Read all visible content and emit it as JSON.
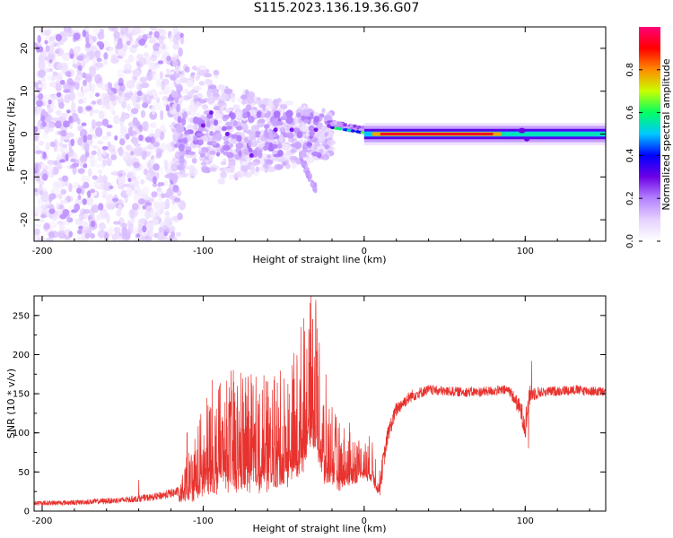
{
  "title": "S115.2023.136.19.36.G07",
  "chart_data": [
    {
      "type": "heatmap",
      "xlabel": "Height of straight line (km)",
      "ylabel": "Frequency (Hz)",
      "xlim": [
        -205,
        150
      ],
      "ylim": [
        -25,
        25
      ],
      "xticks": [
        -200,
        -100,
        0,
        100
      ],
      "yticks": [
        -20,
        -10,
        0,
        10,
        20
      ],
      "colorbar": {
        "label": "Normalized spectral amplitude",
        "range": [
          0,
          1
        ],
        "ticks": [
          0.0,
          0.2,
          0.4,
          0.6,
          0.8
        ],
        "colormap": [
          "#ffffff",
          "#e6d2ff",
          "#b482ff",
          "#6e00e6",
          "#0000ff",
          "#00c8ff",
          "#00ff64",
          "#c8ff00",
          "#ff8c00",
          "#ff0000",
          "#ff0078"
        ]
      },
      "features": [
        {
          "name": "diffuse noise",
          "x_range": [
            -205,
            -115
          ],
          "freq_range": [
            -25,
            25
          ],
          "amplitude": 0.05
        },
        {
          "name": "scattered features",
          "x_range": [
            -115,
            -20
          ],
          "freq_range": [
            -15,
            12
          ],
          "amplitude": 0.15
        },
        {
          "name": "descending streak",
          "x": [
            -40,
            -30
          ],
          "freq": [
            -5,
            -13
          ],
          "amplitude": 0.12
        },
        {
          "name": "transition",
          "x_range": [
            -20,
            10
          ],
          "freq_range": [
            -1,
            4
          ],
          "amplitude": 0.5
        },
        {
          "name": "stable carrier line",
          "x_range": [
            0,
            150
          ],
          "freq": 0,
          "amplitude": 0.85
        }
      ]
    },
    {
      "type": "line",
      "xlabel": "Height of straight line (km)",
      "ylabel": "SNR (10 * v/v)",
      "xlim": [
        -205,
        150
      ],
      "ylim": [
        0,
        275
      ],
      "xticks": [
        -200,
        -100,
        0,
        100
      ],
      "yticks": [
        0,
        50,
        100,
        150,
        200,
        250
      ],
      "color": "#e8322e",
      "series": [
        {
          "x": [
            -205,
            -180,
            -150,
            -130,
            -115,
            -105,
            -95,
            -85,
            -75,
            -65,
            -55,
            -45,
            -38,
            -33,
            -30,
            -25,
            -20,
            -15,
            -10,
            -5,
            0,
            5,
            10,
            15,
            20,
            25,
            30,
            40,
            50,
            70,
            90,
            97,
            100,
            103,
            110,
            130,
            150
          ],
          "y": [
            10,
            11,
            14,
            18,
            25,
            45,
            70,
            80,
            85,
            80,
            85,
            100,
            140,
            220,
            200,
            90,
            95,
            70,
            80,
            90,
            100,
            90,
            40,
            100,
            130,
            140,
            148,
            155,
            153,
            152,
            155,
            130,
            110,
            150,
            152,
            155,
            152
          ],
          "noise": [
            4,
            4,
            5,
            6,
            8,
            35,
            50,
            55,
            60,
            55,
            55,
            60,
            70,
            60,
            70,
            50,
            40,
            30,
            30,
            25,
            20,
            20,
            20,
            15,
            12,
            10,
            10,
            8,
            8,
            8,
            8,
            15,
            25,
            15,
            8,
            8,
            8
          ],
          "peaks": [
            {
              "x": -33,
              "y": 275
            },
            {
              "x": -30,
              "y": 270
            },
            {
              "x": -32,
              "y": 245
            },
            {
              "x": -37,
              "y": 230
            },
            {
              "x": -60,
              "y": 165
            },
            {
              "x": -81,
              "y": 165
            },
            {
              "x": -72,
              "y": 162
            },
            {
              "x": -90,
              "y": 160
            },
            {
              "x": -65,
              "y": 150
            },
            {
              "x": -97,
              "y": 135
            },
            {
              "x": -110,
              "y": 100
            },
            {
              "x": -140,
              "y": 40
            },
            {
              "x": 104,
              "y": 192
            },
            {
              "x": 102,
              "y": 80
            },
            {
              "x": 10,
              "y": 30
            }
          ]
        }
      ]
    }
  ]
}
